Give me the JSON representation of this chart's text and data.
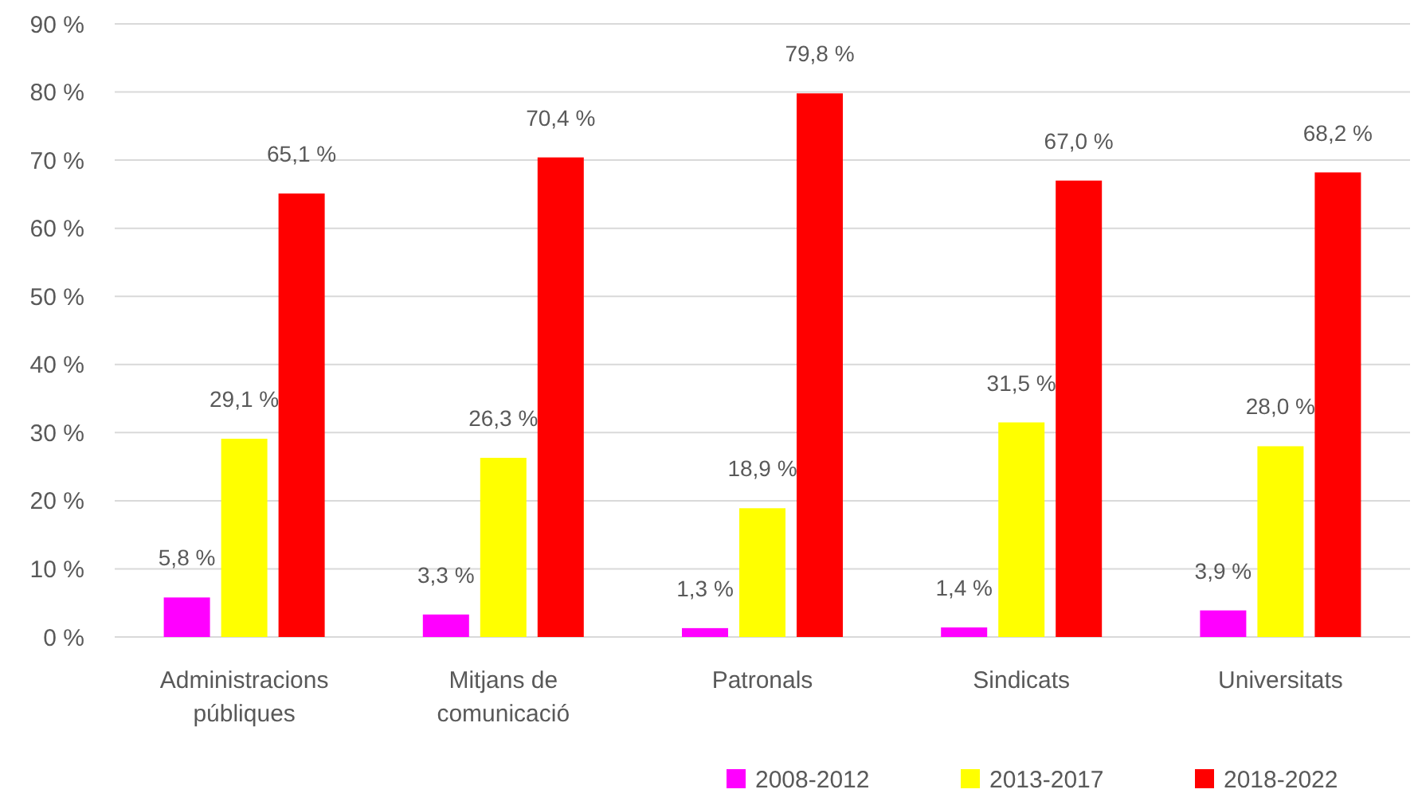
{
  "chart_data": {
    "type": "bar",
    "categories": [
      "Administracions públiques",
      "Mitjans de comunicació",
      "Patronals",
      "Sindicats",
      "Universitats"
    ],
    "series": [
      {
        "name": "2008-2012",
        "color": "#ff00ff",
        "values": [
          5.8,
          3.3,
          1.3,
          1.4,
          3.9
        ],
        "value_labels": [
          "5,8 %",
          "3,3 %",
          "1,3 %",
          "1,4 %",
          "3,9 %"
        ]
      },
      {
        "name": "2013-2017",
        "color": "#ffff00",
        "values": [
          29.1,
          26.3,
          18.9,
          31.5,
          28.0
        ],
        "value_labels": [
          "29,1 %",
          "26,3 %",
          "18,9 %",
          "31,5 %",
          "28,0 %"
        ]
      },
      {
        "name": "2018-2022",
        "color": "#ff0000",
        "values": [
          65.1,
          70.4,
          79.8,
          67.0,
          68.2
        ],
        "value_labels": [
          "65,1 %",
          "70,4 %",
          "79,8 %",
          "67,0 %",
          "68,2 %"
        ]
      }
    ],
    "ylim": [
      0,
      90
    ],
    "yticks": [
      {
        "value": 0,
        "label": "0 %"
      },
      {
        "value": 10,
        "label": "10 %"
      },
      {
        "value": 20,
        "label": "20 %"
      },
      {
        "value": 30,
        "label": "30 %"
      },
      {
        "value": 40,
        "label": "40 %"
      },
      {
        "value": 50,
        "label": "50 %"
      },
      {
        "value": 60,
        "label": "60 %"
      },
      {
        "value": 70,
        "label": "70 %"
      },
      {
        "value": 80,
        "label": "80 %"
      },
      {
        "value": 90,
        "label": "90 %"
      }
    ],
    "grid": "y",
    "legend": "bottom right"
  }
}
